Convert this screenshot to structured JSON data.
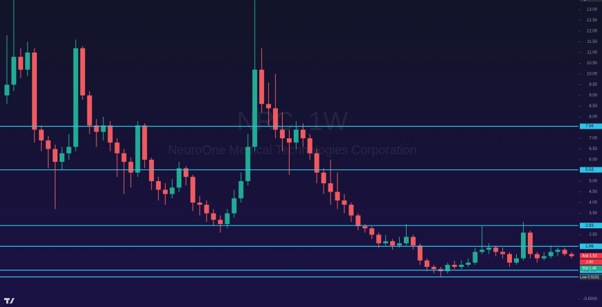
{
  "chart_data": {
    "type": "candlestick",
    "watermark": "NRC, 1W",
    "subtitle": "NeuroOne Medical Technologies Corporation",
    "ylim": [
      -0.87,
      13.45
    ],
    "yticks": [
      {
        "value": 13,
        "label": "13.00"
      },
      {
        "value": 12.5,
        "label": "12.50"
      },
      {
        "value": 12,
        "label": "12.00"
      },
      {
        "value": 11.5,
        "label": "11.50"
      },
      {
        "value": 11,
        "label": "11.00"
      },
      {
        "value": 10.5,
        "label": "10.50"
      },
      {
        "value": 10,
        "label": "10.00"
      },
      {
        "value": 9.5,
        "label": "9.50"
      },
      {
        "value": 9,
        "label": "9.00"
      },
      {
        "value": 8.5,
        "label": "8.50"
      },
      {
        "value": 8,
        "label": "8.00"
      },
      {
        "value": 7,
        "label": "7.00"
      },
      {
        "value": 6.5,
        "label": "6.50"
      },
      {
        "value": 6,
        "label": "6.00"
      },
      {
        "value": 5,
        "label": "5.00"
      },
      {
        "value": 4.5,
        "label": "4.50"
      },
      {
        "value": 4,
        "label": "4.00"
      },
      {
        "value": 3.5,
        "label": "3.50"
      },
      {
        "value": 2.5,
        "label": "2.50"
      },
      {
        "value": 2,
        "label": "2.00"
      },
      {
        "value": -0.5,
        "label": "-0.5000"
      }
    ],
    "up_color": "#22ab94",
    "down_color": "#f05a5f",
    "level_color": "#2ec4e6",
    "levels": [
      7.56,
      5.53,
      2.93,
      1.96,
      0.8479,
      0.5339
    ],
    "badges": [
      {
        "text": "High 13.50",
        "value": 13.5,
        "color": "#2a2e39"
      },
      {
        "text": "1.50",
        "value": 1.5,
        "color": "#f23645"
      },
      {
        "text": "Ask 1.52",
        "value": 1.52,
        "color": "#f23645"
      },
      {
        "text": "Bid 1.46",
        "value": 1.46,
        "color": "#22ab94"
      },
      {
        "text": "Low 0.5101",
        "value": 0.5101,
        "color": "#2a2e39"
      }
    ],
    "series": [
      {
        "open": [
          9.0,
          9.5,
          10.8,
          10.2,
          11.0,
          7.4,
          6.9,
          6.5,
          5.9,
          6.3,
          6.6,
          11.2,
          9.0,
          7.6,
          7.3,
          7.6,
          6.8,
          6.3,
          5.9,
          5.4,
          7.6,
          6.0,
          5.0,
          4.6,
          4.4,
          4.7,
          5.6,
          5.2,
          4.0,
          3.9,
          3.5,
          3.2,
          3.0,
          3.5,
          4.2,
          5.0,
          6.6,
          10.2,
          8.6,
          8.4,
          7.4,
          7.0,
          6.8,
          7.4,
          7.0,
          6.3,
          5.4,
          4.9,
          4.5,
          4.1,
          3.9,
          3.4,
          2.9,
          2.8,
          2.5,
          2.1,
          2.2,
          2.0,
          2.1,
          2.4,
          2.0,
          1.3,
          1.0,
          0.9,
          0.8,
          1.1,
          1.0,
          1.1,
          1.2,
          1.7,
          1.8,
          1.9,
          1.7,
          1.6,
          1.2,
          1.4,
          2.6,
          1.6,
          1.4,
          1.5,
          1.7,
          1.8,
          1.6
        ],
        "high": [
          11.8,
          13.6,
          11.2,
          11.5,
          11.2,
          7.6,
          7.1,
          6.7,
          6.6,
          7.2,
          11.6,
          11.3,
          9.2,
          7.9,
          8.0,
          7.8,
          7.0,
          6.5,
          6.1,
          7.8,
          7.7,
          6.1,
          5.2,
          4.9,
          5.1,
          5.9,
          5.7,
          5.3,
          4.3,
          4.1,
          3.7,
          3.4,
          3.7,
          4.6,
          5.4,
          7.2,
          13.5,
          11.2,
          9.6,
          10.0,
          8.2,
          7.4,
          7.8,
          7.7,
          7.2,
          6.5,
          5.6,
          6.0,
          5.4,
          4.4,
          4.0,
          3.5,
          3.0,
          2.9,
          2.6,
          2.5,
          2.3,
          2.4,
          3.0,
          2.5,
          2.1,
          1.4,
          1.1,
          1.0,
          1.2,
          1.3,
          1.3,
          1.4,
          1.9,
          2.9,
          2.1,
          2.0,
          1.9,
          1.7,
          1.6,
          3.1,
          2.7,
          1.7,
          1.7,
          2.0,
          1.9,
          1.9,
          1.7
        ],
        "low": [
          8.6,
          9.2,
          9.8,
          9.9,
          6.8,
          6.4,
          5.6,
          3.7,
          5.5,
          6.0,
          6.4,
          8.8,
          7.2,
          6.6,
          6.9,
          6.4,
          5.2,
          4.4,
          4.7,
          5.2,
          5.6,
          4.6,
          4.1,
          3.9,
          4.2,
          4.5,
          4.8,
          3.6,
          3.4,
          3.1,
          2.9,
          2.6,
          2.8,
          3.3,
          4.0,
          4.8,
          6.4,
          8.2,
          7.6,
          7.0,
          6.4,
          5.3,
          6.5,
          6.6,
          6.0,
          4.9,
          4.4,
          3.9,
          3.7,
          3.5,
          3.1,
          2.7,
          2.6,
          2.3,
          1.9,
          2.0,
          1.8,
          1.9,
          2.0,
          1.8,
          1.1,
          0.8,
          0.7,
          0.51,
          0.7,
          0.9,
          0.9,
          1.0,
          1.1,
          1.6,
          1.6,
          1.5,
          1.4,
          1.0,
          1.1,
          1.3,
          1.4,
          1.2,
          1.3,
          1.4,
          1.5,
          1.5,
          1.4
        ],
        "close": [
          9.5,
          10.8,
          10.2,
          11.0,
          7.4,
          6.9,
          6.5,
          5.9,
          6.3,
          6.6,
          11.2,
          9.0,
          7.6,
          7.3,
          7.6,
          6.8,
          6.3,
          5.9,
          5.4,
          7.6,
          6.0,
          5.0,
          4.6,
          4.4,
          4.7,
          5.6,
          5.2,
          4.0,
          3.9,
          3.5,
          3.2,
          3.0,
          3.5,
          4.2,
          5.0,
          6.6,
          10.2,
          8.6,
          8.4,
          7.4,
          7.0,
          6.8,
          7.4,
          7.0,
          6.3,
          5.4,
          4.9,
          4.5,
          4.1,
          3.9,
          3.4,
          2.9,
          2.8,
          2.5,
          2.1,
          2.2,
          2.0,
          2.1,
          2.4,
          2.0,
          1.3,
          1.0,
          0.9,
          0.8,
          1.1,
          1.0,
          1.1,
          1.2,
          1.7,
          1.8,
          1.9,
          1.7,
          1.6,
          1.2,
          1.4,
          2.6,
          1.6,
          1.4,
          1.5,
          1.7,
          1.8,
          1.6,
          1.5
        ]
      }
    ]
  }
}
